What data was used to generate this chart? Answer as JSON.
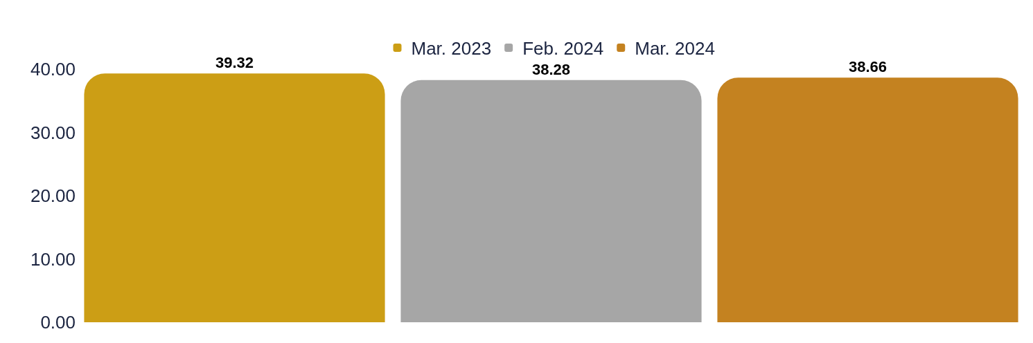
{
  "chart_data": {
    "type": "bar",
    "categories": [
      null
    ],
    "series": [
      {
        "name": "Mar. 2023",
        "color": "#cc9e15",
        "values": [
          39.32
        ]
      },
      {
        "name": "Feb. 2024",
        "color": "#a6a6a6",
        "values": [
          38.28
        ]
      },
      {
        "name": "Mar. 2024",
        "color": "#c48220",
        "values": [
          38.66
        ]
      }
    ],
    "ylim": [
      0,
      40
    ],
    "yticks": [
      {
        "value": 0,
        "label": "0.00"
      },
      {
        "value": 10,
        "label": "10.00"
      },
      {
        "value": 20,
        "label": "20.00"
      },
      {
        "value": 30,
        "label": "30.00"
      },
      {
        "value": 40,
        "label": "40.00"
      }
    ],
    "data_labels": true,
    "legend": "top",
    "tick_labels": "y"
  }
}
